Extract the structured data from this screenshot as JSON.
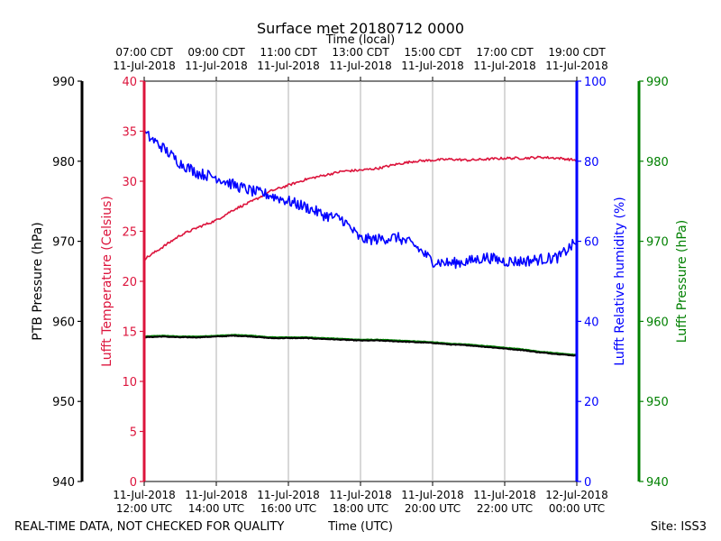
{
  "title": "Surface met 20180712 0000",
  "footer": {
    "left": "REAL-TIME DATA, NOT CHECKED FOR QUALITY",
    "center": "Time (UTC)",
    "right": "Site: ISS3"
  },
  "colors": {
    "temperature": "#dc143c",
    "humidity": "#0000ff",
    "ptb_pressure": "#000000",
    "lufft_pressure": "#008000",
    "grid": "#b0b0b0"
  },
  "chart_data": {
    "type": "line",
    "title": "Surface met 20180712 0000",
    "x_range_hours_utc": [
      12,
      24
    ],
    "x_top_label": "Time (local)",
    "x_bottom_label": "Time (UTC)",
    "x_ticks": [
      {
        "x": 12,
        "utc_date": "11-Jul-2018",
        "utc_time": "12:00 UTC",
        "local_time": "07:00 CDT",
        "local_date": "11-Jul-2018"
      },
      {
        "x": 14,
        "utc_date": "11-Jul-2018",
        "utc_time": "14:00 UTC",
        "local_time": "09:00 CDT",
        "local_date": "11-Jul-2018"
      },
      {
        "x": 16,
        "utc_date": "11-Jul-2018",
        "utc_time": "16:00 UTC",
        "local_time": "11:00 CDT",
        "local_date": "11-Jul-2018"
      },
      {
        "x": 18,
        "utc_date": "11-Jul-2018",
        "utc_time": "18:00 UTC",
        "local_time": "13:00 CDT",
        "local_date": "11-Jul-2018"
      },
      {
        "x": 20,
        "utc_date": "11-Jul-2018",
        "utc_time": "20:00 UTC",
        "local_time": "15:00 CDT",
        "local_date": "11-Jul-2018"
      },
      {
        "x": 22,
        "utc_date": "11-Jul-2018",
        "utc_time": "22:00 UTC",
        "local_time": "17:00 CDT",
        "local_date": "11-Jul-2018"
      },
      {
        "x": 24,
        "utc_date": "12-Jul-2018",
        "utc_time": "00:00 UTC",
        "local_time": "19:00 CDT",
        "local_date": "11-Jul-2018"
      }
    ],
    "axes": {
      "ptb_pressure": {
        "label": "PTB Pressure (hPa)",
        "range": [
          940,
          990
        ],
        "ticks": [
          940,
          950,
          960,
          970,
          980,
          990
        ]
      },
      "temperature": {
        "label": "Lufft Temperature (Celsius)",
        "range": [
          0,
          40
        ],
        "ticks": [
          0,
          5,
          10,
          15,
          20,
          25,
          30,
          35,
          40
        ]
      },
      "humidity": {
        "label": "Lufft Relative humidity (%)",
        "range": [
          0,
          100
        ],
        "ticks": [
          0,
          20,
          40,
          60,
          80,
          100
        ]
      },
      "lufft_pressure": {
        "label": "Lufft Pressure (hPa)",
        "range": [
          940,
          990
        ],
        "ticks": [
          940,
          950,
          960,
          970,
          980,
          990
        ]
      }
    },
    "series": [
      {
        "name": "Lufft Temperature",
        "axis": "temperature",
        "noise": 0.12,
        "x": [
          12.0,
          12.5,
          13.0,
          13.5,
          14.0,
          14.5,
          15.0,
          15.5,
          16.0,
          16.5,
          17.0,
          17.5,
          18.0,
          18.5,
          19.0,
          19.5,
          20.0,
          20.5,
          21.0,
          21.5,
          22.0,
          22.5,
          23.0,
          23.5,
          24.0
        ],
        "y": [
          22.2,
          23.4,
          24.6,
          25.4,
          26.1,
          27.2,
          28.0,
          29.0,
          29.6,
          30.2,
          30.6,
          31.0,
          31.1,
          31.3,
          31.7,
          32.0,
          32.1,
          32.2,
          32.1,
          32.2,
          32.3,
          32.3,
          32.4,
          32.3,
          32.1
        ]
      },
      {
        "name": "Lufft Relative humidity",
        "axis": "humidity",
        "noise": 1.4,
        "x": [
          12.0,
          12.5,
          13.0,
          13.5,
          14.0,
          14.5,
          15.0,
          15.5,
          16.0,
          16.5,
          17.0,
          17.5,
          18.0,
          18.5,
          19.0,
          19.5,
          20.0,
          20.5,
          21.0,
          21.5,
          22.0,
          22.5,
          23.0,
          23.5,
          24.0
        ],
        "y": [
          87.0,
          83.5,
          79.5,
          77.0,
          76.0,
          74.0,
          72.5,
          71.5,
          70.0,
          68.5,
          66.5,
          65.5,
          60.5,
          60.5,
          61.0,
          59.0,
          55.0,
          54.5,
          55.0,
          56.0,
          55.0,
          55.0,
          55.5,
          56.0,
          60.0
        ]
      },
      {
        "name": "PTB Pressure",
        "axis": "ptb_pressure",
        "noise": 0.04,
        "x": [
          12.0,
          12.5,
          13.0,
          13.5,
          14.0,
          14.5,
          15.0,
          15.5,
          16.0,
          16.5,
          17.0,
          17.5,
          18.0,
          18.5,
          19.0,
          19.5,
          20.0,
          20.5,
          21.0,
          21.5,
          22.0,
          22.5,
          23.0,
          23.5,
          24.0
        ],
        "y": [
          958.0,
          958.1,
          958.0,
          958.0,
          958.1,
          958.2,
          958.1,
          957.9,
          957.9,
          957.9,
          957.8,
          957.7,
          957.6,
          957.6,
          957.5,
          957.4,
          957.3,
          957.1,
          957.0,
          956.8,
          956.6,
          956.4,
          956.1,
          955.9,
          955.7
        ]
      },
      {
        "name": "Lufft Pressure",
        "axis": "lufft_pressure",
        "noise": 0.03,
        "x": [
          12.0,
          12.5,
          13.0,
          13.5,
          14.0,
          14.5,
          15.0,
          15.5,
          16.0,
          16.5,
          17.0,
          17.5,
          18.0,
          18.5,
          19.0,
          19.5,
          20.0,
          20.5,
          21.0,
          21.5,
          22.0,
          22.5,
          23.0,
          23.5,
          24.0
        ],
        "y": [
          958.1,
          958.2,
          958.1,
          958.1,
          958.2,
          958.3,
          958.2,
          958.0,
          958.0,
          958.0,
          957.9,
          957.8,
          957.7,
          957.7,
          957.6,
          957.5,
          957.4,
          957.2,
          957.1,
          956.9,
          956.7,
          956.5,
          956.2,
          956.0,
          955.8
        ]
      }
    ]
  }
}
